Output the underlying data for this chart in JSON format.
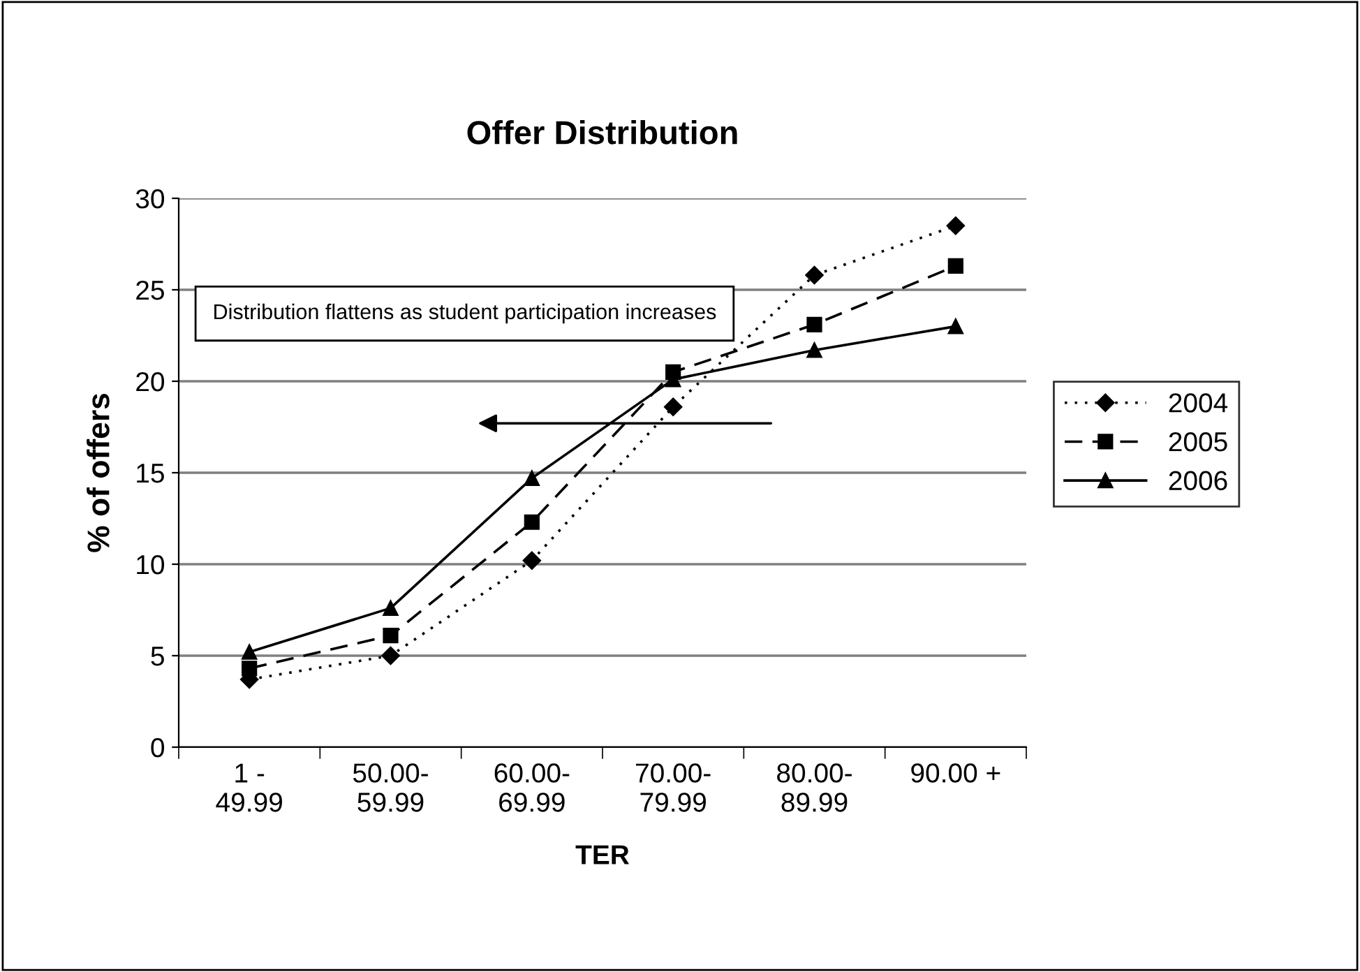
{
  "chart_data": {
    "type": "line",
    "title": "Offer Distribution",
    "xlabel": "TER",
    "ylabel": "% of offers",
    "categories": [
      "1 -\n49.99",
      "50.00-\n59.99",
      "60.00-\n69.99",
      "70.00-\n79.99",
      "80.00-\n89.99",
      "90.00 +"
    ],
    "series": [
      {
        "name": "2004",
        "color": "#000000",
        "marker": "diamond",
        "line_style": "dotted",
        "values": [
          3.7,
          5.0,
          10.2,
          18.6,
          25.8,
          28.5
        ]
      },
      {
        "name": "2005",
        "color": "#000000",
        "marker": "square",
        "line_style": "dashed",
        "values": [
          4.3,
          6.1,
          12.3,
          20.5,
          23.1,
          26.3
        ]
      },
      {
        "name": "2006",
        "color": "#000000",
        "marker": "triangle",
        "line_style": "solid",
        "values": [
          5.2,
          7.6,
          14.7,
          20.1,
          21.7,
          23.0
        ]
      }
    ],
    "ylim": [
      0,
      30
    ],
    "yticks": [
      0,
      5,
      10,
      15,
      20,
      25,
      30
    ],
    "grid": "y",
    "legend": "right",
    "annotations": [
      "Distribution flattens as student participation increases"
    ]
  }
}
